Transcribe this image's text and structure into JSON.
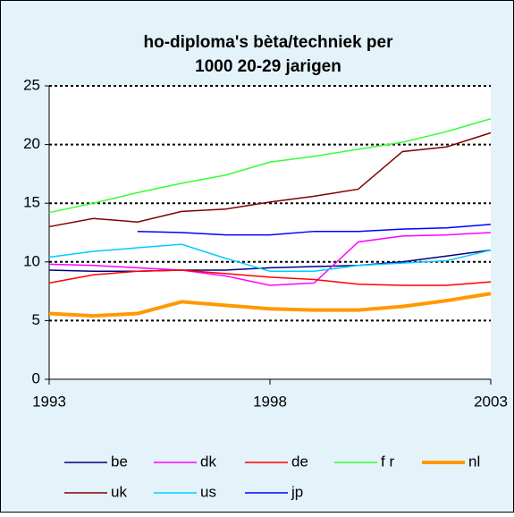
{
  "chart_data": {
    "type": "line",
    "title": [
      "ho-diploma's bèta/techniek per",
      "1000 20-29 jarigen"
    ],
    "x": [
      1993,
      1994,
      1995,
      1996,
      1997,
      1998,
      1999,
      2000,
      2001,
      2002,
      2003
    ],
    "xlim": [
      1993,
      2003
    ],
    "xticks": [
      1993,
      1998,
      2003
    ],
    "ylim": [
      0,
      25
    ],
    "yticks": [
      0,
      5,
      10,
      15,
      20,
      25
    ],
    "grid": true,
    "legend": "bottom",
    "series": [
      {
        "name": "be",
        "color": "#000080",
        "values": [
          9.3,
          9.2,
          9.2,
          9.3,
          9.3,
          9.5,
          9.6,
          9.7,
          10.0,
          10.5,
          11.0
        ]
      },
      {
        "name": "dk",
        "color": "#ff00ff",
        "values": [
          9.8,
          9.7,
          9.5,
          9.3,
          8.8,
          8.0,
          8.2,
          11.7,
          12.2,
          12.3,
          12.5
        ]
      },
      {
        "name": "de",
        "color": "#ff0000",
        "values": [
          8.2,
          8.9,
          9.2,
          9.3,
          9.0,
          8.7,
          8.5,
          8.1,
          8.0,
          8.0,
          8.3
        ]
      },
      {
        "name": "f r",
        "color": "#33ff33",
        "values": [
          14.2,
          15.0,
          15.9,
          16.7,
          17.4,
          18.5,
          19.0,
          19.6,
          20.2,
          21.1,
          22.2
        ]
      },
      {
        "name": "nl",
        "color": "#ff9900",
        "width": 4,
        "values": [
          5.6,
          5.4,
          5.6,
          6.6,
          6.3,
          6.0,
          5.9,
          5.9,
          6.2,
          6.7,
          7.3
        ]
      },
      {
        "name": "uk",
        "color": "#800000",
        "values": [
          13.0,
          13.7,
          13.4,
          14.3,
          14.5,
          15.1,
          15.6,
          16.2,
          19.4,
          19.8,
          21.0
        ]
      },
      {
        "name": "us",
        "color": "#00ccff",
        "values": [
          10.4,
          10.9,
          11.2,
          11.5,
          10.3,
          9.2,
          9.2,
          9.7,
          9.9,
          10.1,
          11.0
        ]
      },
      {
        "name": "jp",
        "color": "#0000ff",
        "values": [
          null,
          null,
          12.6,
          12.5,
          12.3,
          12.3,
          12.6,
          12.6,
          12.8,
          12.9,
          13.2
        ]
      }
    ]
  }
}
